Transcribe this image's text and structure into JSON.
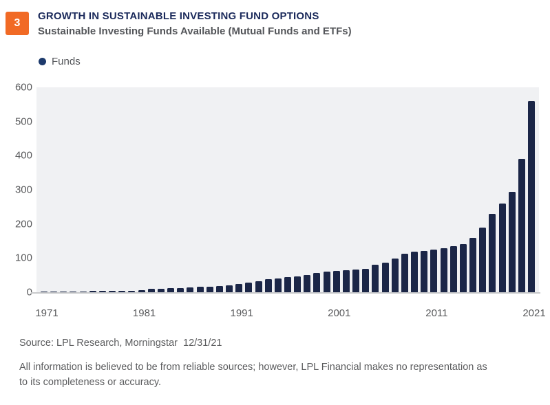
{
  "figure": {
    "badge": "3",
    "badge_color": "#F16A25",
    "title": "GROWTH IN SUSTAINABLE INVESTING FUND OPTIONS",
    "subtitle": "Sustainable Investing Funds Available (Mutual Funds and ETFs)"
  },
  "legend": {
    "items": [
      {
        "label": "Funds",
        "color": "#1D3A6C"
      }
    ]
  },
  "chart_data": {
    "type": "bar",
    "title": "Sustainable Investing Funds Available (Mutual Funds and ETFs)",
    "series_name": "Funds",
    "x": [
      1971,
      1972,
      1973,
      1974,
      1975,
      1976,
      1977,
      1978,
      1979,
      1980,
      1981,
      1982,
      1983,
      1984,
      1985,
      1986,
      1987,
      1988,
      1989,
      1990,
      1991,
      1992,
      1993,
      1994,
      1995,
      1996,
      1997,
      1998,
      1999,
      2000,
      2001,
      2002,
      2003,
      2004,
      2005,
      2006,
      2007,
      2008,
      2009,
      2010,
      2011,
      2012,
      2013,
      2014,
      2015,
      2016,
      2017,
      2018,
      2019,
      2020,
      2021
    ],
    "values": [
      3,
      3,
      3,
      3,
      3,
      4,
      4,
      4,
      5,
      5,
      6,
      10,
      11,
      13,
      13,
      15,
      17,
      17,
      19,
      20,
      24,
      29,
      33,
      38,
      41,
      45,
      47,
      50,
      57,
      60,
      62,
      64,
      66,
      69,
      80,
      87,
      99,
      112,
      118,
      121,
      125,
      128,
      134,
      141,
      160,
      190,
      230,
      260,
      295,
      390,
      560
    ],
    "xticks": [
      1971,
      1981,
      1991,
      2001,
      2011,
      2021
    ],
    "yticks": [
      0,
      100,
      200,
      300,
      400,
      500,
      600
    ],
    "ylim": [
      0,
      600
    ],
    "xlabel": "",
    "ylabel": "",
    "grid": false,
    "legend_position": "top-left",
    "bar_color": "#1B2647",
    "plot_bg": "#F0F1F3",
    "axis_line_color": "#C8C9CB"
  },
  "footer": {
    "source": "Source: LPL Research, Morningstar  12/31/21",
    "disclaimer": "All information is believed to be from reliable sources; however, LPL Financial makes no representation as to its completeness or accuracy."
  }
}
